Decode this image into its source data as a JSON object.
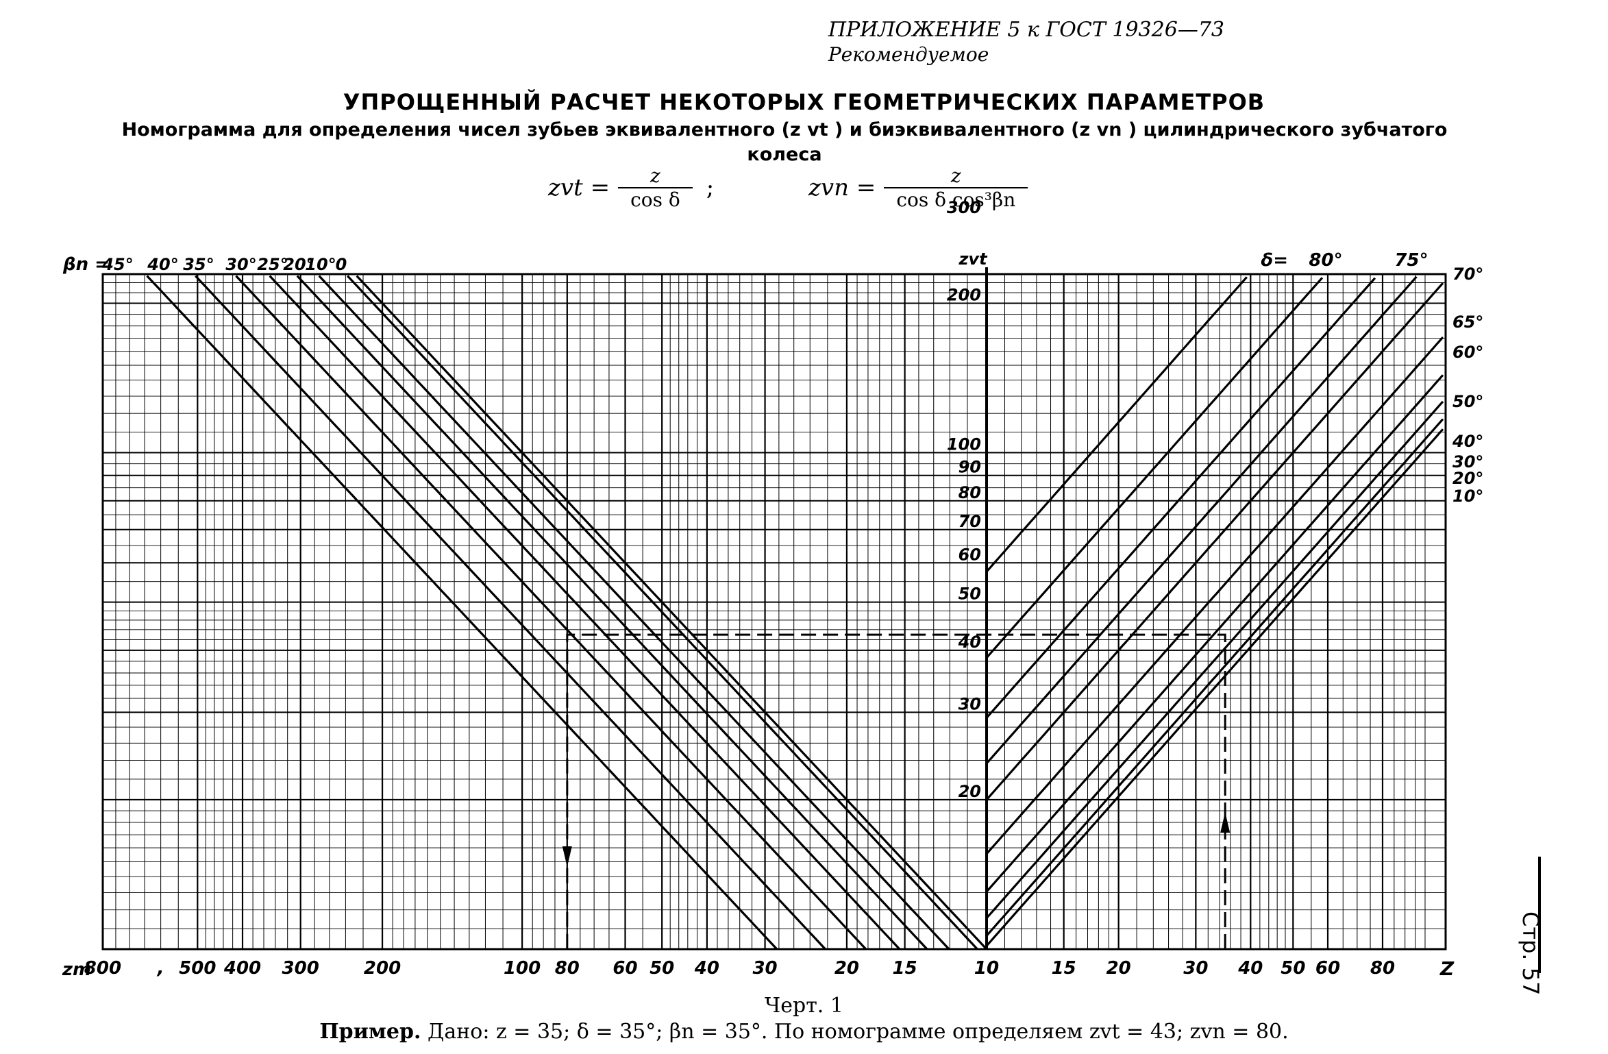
{
  "header": {
    "appendix": "ПРИЛОЖЕНИЕ 5 к ГОСТ 19326—73",
    "status": "Рекомендуемое"
  },
  "title": "УПРОЩЕННЫЙ РАСЧЕТ НЕКОТОРЫХ ГЕОМЕТРИЧЕСКИХ ПАРАМЕТРОВ",
  "subtitle": "Номограмма для определения чисел зубьев эквивалентного (z vt ) и биэквивалентного (z vn ) цилиндрического зубчатого колеса",
  "formulas": {
    "zvt_lhs": "zvt =",
    "zvt_num": "z",
    "zvt_den": "cos δ",
    "separator": ";",
    "zvn_lhs": "zvn =",
    "zvn_num": "z",
    "zvn_den": "cos δ cos³βn"
  },
  "page_number": "Стр. 57",
  "caption": "Черт. 1",
  "example": {
    "label": "Пример.",
    "text": "Дано: z = 35; δ = 35°; βn = 35°. По номограмме определяем zvt = 43; zvn = 80."
  },
  "chart_data": {
    "type": "line",
    "description_axes": {
      "bottom_left_axis": {
        "label": "zvn",
        "reversed": true,
        "scale": "log",
        "range": [
          10,
          800
        ]
      },
      "bottom_right_axis": {
        "label": "z",
        "scale": "log",
        "range": [
          10,
          100
        ]
      },
      "center_axis": {
        "label": "zvt",
        "scale": "log",
        "range": [
          10,
          300
        ]
      }
    },
    "labels": {
      "beta_axis_label": "βn =",
      "delta_axis_label": "δ=",
      "zvt_axis_label": "zvt",
      "zvn_axis_label": "zm",
      "z_axis_label": "Z"
    },
    "zvn_ticks": [
      "800",
      ",",
      "500",
      "400",
      "300",
      "200",
      "100",
      "80",
      "60",
      "50",
      "40",
      "30",
      "20",
      "15",
      "10"
    ],
    "zvn_tick_values": [
      800,
      600,
      500,
      400,
      300,
      200,
      100,
      80,
      60,
      50,
      40,
      30,
      20,
      15,
      10
    ],
    "z_ticks": [
      "10",
      "15",
      "20",
      "30",
      "40",
      "50",
      "60",
      "80"
    ],
    "z_tick_values": [
      10,
      15,
      20,
      30,
      40,
      50,
      60,
      80
    ],
    "zvt_ticks": [
      "300",
      "200",
      "100",
      "90",
      "80",
      "70",
      "60",
      "50",
      "40",
      "30",
      "20"
    ],
    "zvt_tick_values": [
      300,
      200,
      100,
      90,
      80,
      70,
      60,
      50,
      40,
      30,
      20
    ],
    "beta_series": [
      {
        "name": "45°",
        "value": 45
      },
      {
        "name": "40°",
        "value": 40
      },
      {
        "name": "35°",
        "value": 35
      },
      {
        "name": "30°",
        "value": 30
      },
      {
        "name": "25°",
        "value": 25
      },
      {
        "name": "20°",
        "value": 20
      },
      {
        "name": "10°",
        "value": 10
      },
      {
        "name": "0",
        "value": 0
      }
    ],
    "delta_series": [
      {
        "name": "80°",
        "value": 80
      },
      {
        "name": "75°",
        "value": 75
      },
      {
        "name": "70°",
        "value": 70
      },
      {
        "name": "65°",
        "value": 65
      },
      {
        "name": "60°",
        "value": 60
      },
      {
        "name": "50°",
        "value": 50
      },
      {
        "name": "40°",
        "value": 40
      },
      {
        "name": "30°",
        "value": 30
      },
      {
        "name": "20°",
        "value": 20
      },
      {
        "name": "10°",
        "value": 10
      }
    ],
    "example": {
      "z": 35,
      "delta": 35,
      "beta_n": 35,
      "zvt": 43,
      "zvn": 80
    }
  }
}
